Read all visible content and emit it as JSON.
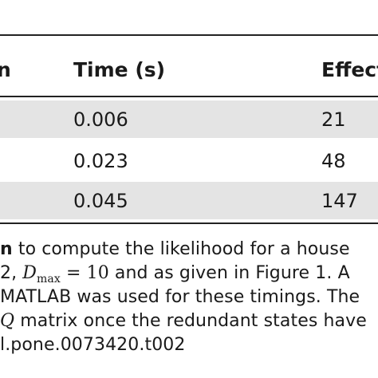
{
  "table": {
    "headers": [
      "n",
      "Time (s)",
      "Effect"
    ],
    "rows": [
      {
        "time": "0.006",
        "effect": "21"
      },
      {
        "time": "0.023",
        "effect": "48"
      },
      {
        "time": "0.045",
        "effect": "147"
      }
    ]
  },
  "caption": {
    "line1_bold": "n",
    "line1_text": " to compute the likelihood for a house",
    "line2_pre": "2, ",
    "line2_var": "D",
    "line2_sub": "max",
    "line2_eq": " = 10",
    "line2_post": " and as given in Figure 1. A",
    "line3": "MATLAB was used for these timings. The",
    "line4_var": "Q",
    "line4_text": " matrix once the redundant states have",
    "line5": "l.pone.0073420.t002"
  }
}
